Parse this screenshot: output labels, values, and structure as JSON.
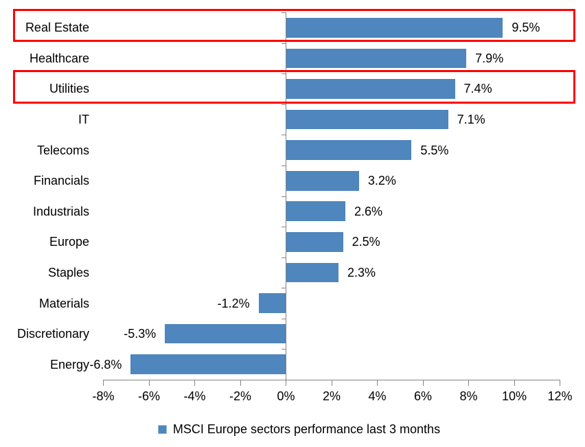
{
  "chart_data": {
    "type": "bar",
    "orientation": "horizontal",
    "title": "",
    "categories": [
      "Real Estate",
      "Healthcare",
      "Utilities",
      "IT",
      "Telecoms",
      "Financials",
      "Industrials",
      "Europe",
      "Staples",
      "Materials",
      "Discretionary",
      "Energy"
    ],
    "values": [
      9.5,
      7.9,
      7.4,
      7.1,
      5.5,
      3.2,
      2.6,
      2.5,
      2.3,
      -1.2,
      -5.3,
      -6.8
    ],
    "value_labels": [
      "9.5%",
      "7.9%",
      "7.4%",
      "7.1%",
      "5.5%",
      "3.2%",
      "2.6%",
      "2.5%",
      "2.3%",
      "-1.2%",
      "-5.3%",
      "-6.8%"
    ],
    "x_axis": {
      "min": -8,
      "max": 12,
      "tick_step": 2,
      "tick_labels": [
        "-8%",
        "-6%",
        "-4%",
        "-2%",
        "0%",
        "2%",
        "4%",
        "6%",
        "8%",
        "10%",
        "12%"
      ]
    },
    "legend": "MSCI Europe sectors performance last 3 months",
    "legend_position": "bottom",
    "grid": false,
    "highlighted_categories": [
      "Real Estate",
      "Utilities"
    ],
    "colors": {
      "bar": "#4e86bd",
      "highlight_box": "#fe0000",
      "axis": "#848484",
      "text": "#000000"
    }
  }
}
